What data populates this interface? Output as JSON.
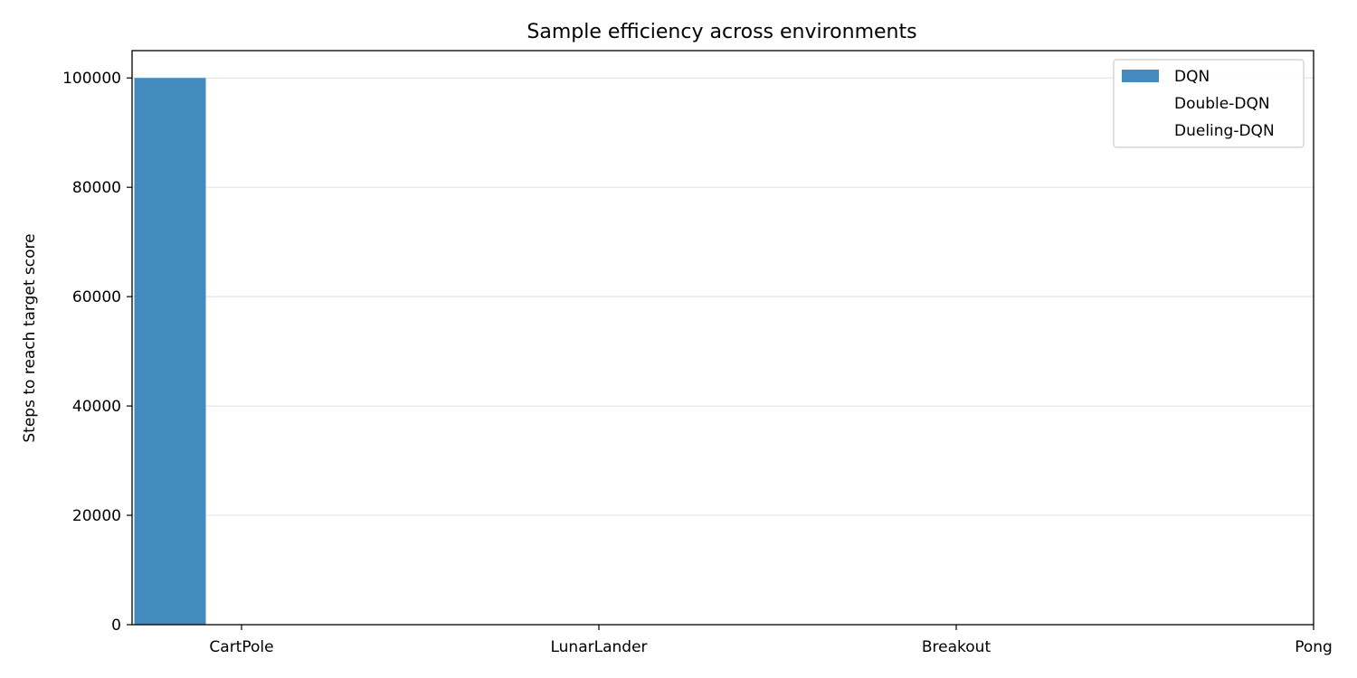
{
  "chart_data": {
    "type": "bar",
    "title": "Sample efficiency across environments",
    "xlabel": "",
    "ylabel": "Steps to reach target score",
    "categories": [
      "CartPole",
      "LunarLander",
      "Breakout",
      "Pong"
    ],
    "series": [
      {
        "name": "DQN",
        "color": "#438bbf",
        "values": [
          100000,
          null,
          null,
          null
        ]
      },
      {
        "name": "Double-DQN",
        "color": "#ffffff",
        "values": [
          null,
          null,
          null,
          null
        ]
      },
      {
        "name": "Dueling-DQN",
        "color": "#ffffff",
        "values": [
          null,
          null,
          null,
          null
        ]
      }
    ],
    "ylim": [
      0,
      105000
    ],
    "yticks": [
      0,
      20000,
      40000,
      60000,
      80000,
      100000
    ],
    "grid": "y",
    "legend": "top-right"
  }
}
